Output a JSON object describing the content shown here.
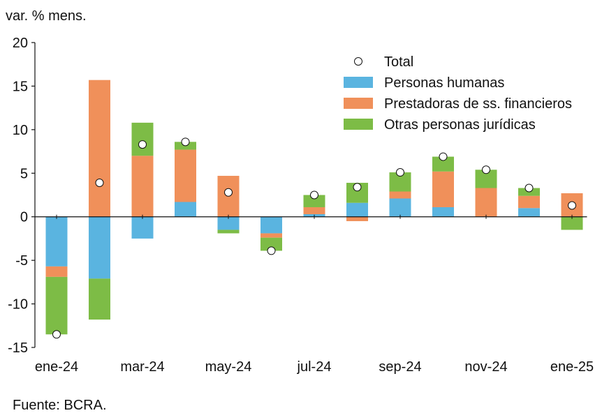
{
  "chart_data": {
    "type": "bar",
    "stacked": true,
    "title": "",
    "ylabel": "var. % mens.",
    "xlabel": "",
    "ylim": [
      -15,
      20
    ],
    "yticks": [
      20,
      15,
      10,
      5,
      0,
      -5,
      -10,
      -15
    ],
    "categories": [
      "ene-24",
      "feb-24",
      "mar-24",
      "abr-24",
      "may-24",
      "jun-24",
      "jul-24",
      "ago-24",
      "sep-24",
      "oct-24",
      "nov-24",
      "dic-24",
      "ene-25"
    ],
    "xtick_labels": [
      "ene-24",
      "mar-24",
      "may-24",
      "jul-24",
      "sep-24",
      "nov-24",
      "ene-25"
    ],
    "series": [
      {
        "name": "Personas humanas",
        "color": "#5ab4e0",
        "values": [
          -5.7,
          -7.1,
          -2.5,
          1.7,
          -1.5,
          -1.9,
          0.3,
          1.6,
          2.1,
          1.1,
          0.0,
          1.0,
          0.0
        ]
      },
      {
        "name": "Prestadoras de ss. financieros",
        "color": "#f0905a",
        "values": [
          -1.2,
          15.7,
          7.0,
          6.0,
          4.7,
          -0.5,
          0.8,
          -0.5,
          0.8,
          4.1,
          3.3,
          1.4,
          2.7
        ]
      },
      {
        "name": "Otras personas jurídicas",
        "color": "#7dbc46",
        "values": [
          -6.6,
          -4.7,
          3.8,
          0.9,
          -0.4,
          -1.5,
          1.4,
          2.3,
          2.2,
          1.7,
          2.1,
          0.9,
          -1.5
        ]
      }
    ],
    "total": {
      "name": "Total",
      "values": [
        -13.5,
        3.9,
        8.3,
        8.6,
        2.8,
        -3.9,
        2.5,
        3.4,
        5.1,
        6.9,
        5.4,
        3.3,
        1.3
      ]
    },
    "legend": [
      "Total",
      "Personas humanas",
      "Prestadoras de ss. financieros",
      "Otras personas jurídicas"
    ],
    "legend_position": "top-right",
    "grid": false
  },
  "source": "Fuente: BCRA."
}
